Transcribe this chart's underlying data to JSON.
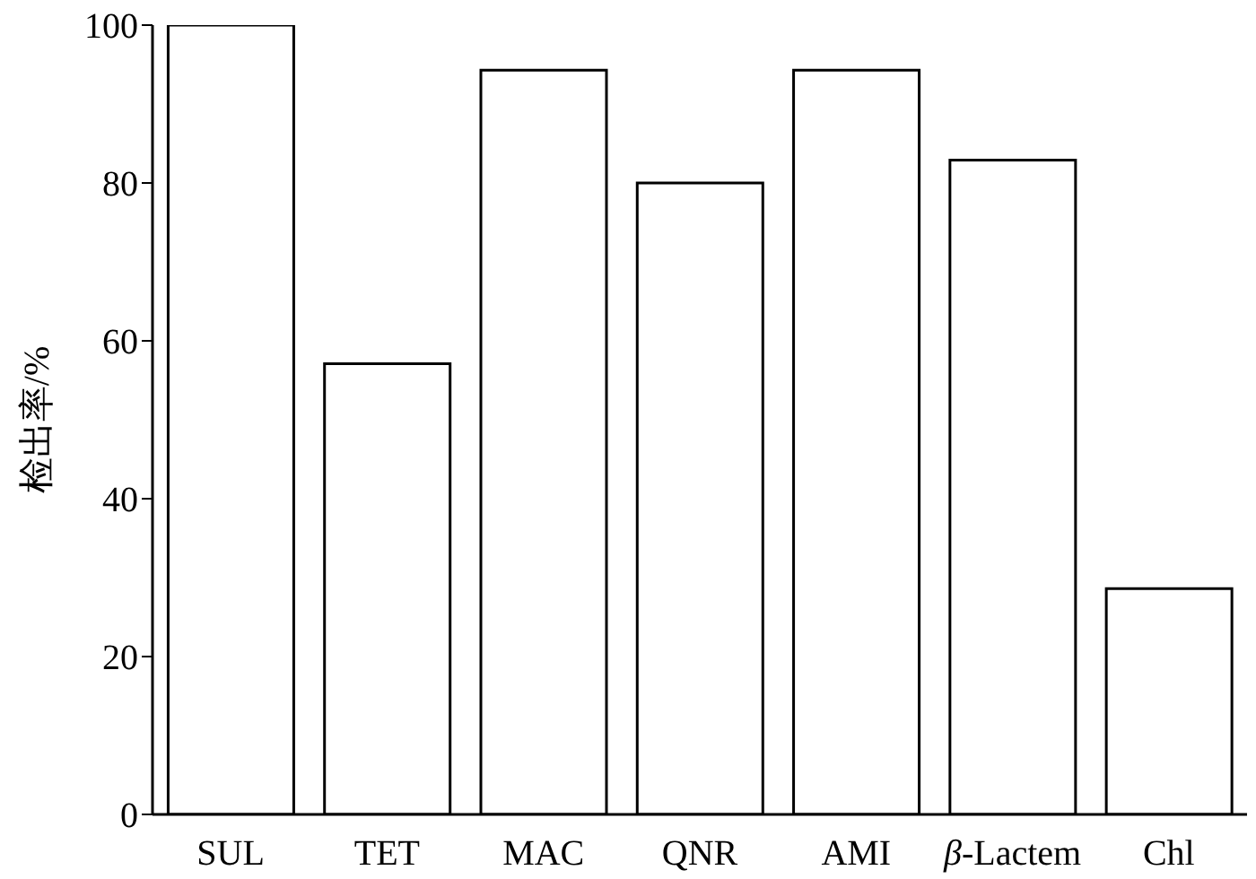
{
  "chart_data": {
    "type": "bar",
    "ylabel": "检出率/%",
    "categories": [
      "SUL",
      "TET",
      "MAC",
      "QNR",
      "AMI",
      "β-Lactem",
      "Chl"
    ],
    "values": [
      100,
      57.1,
      94.3,
      80,
      94.3,
      82.9,
      28.6
    ],
    "color": "#ffffff",
    "ylim": [
      0,
      100
    ],
    "yticks": [
      0,
      20,
      40,
      60,
      80,
      100
    ],
    "grid": false,
    "legend": false
  }
}
